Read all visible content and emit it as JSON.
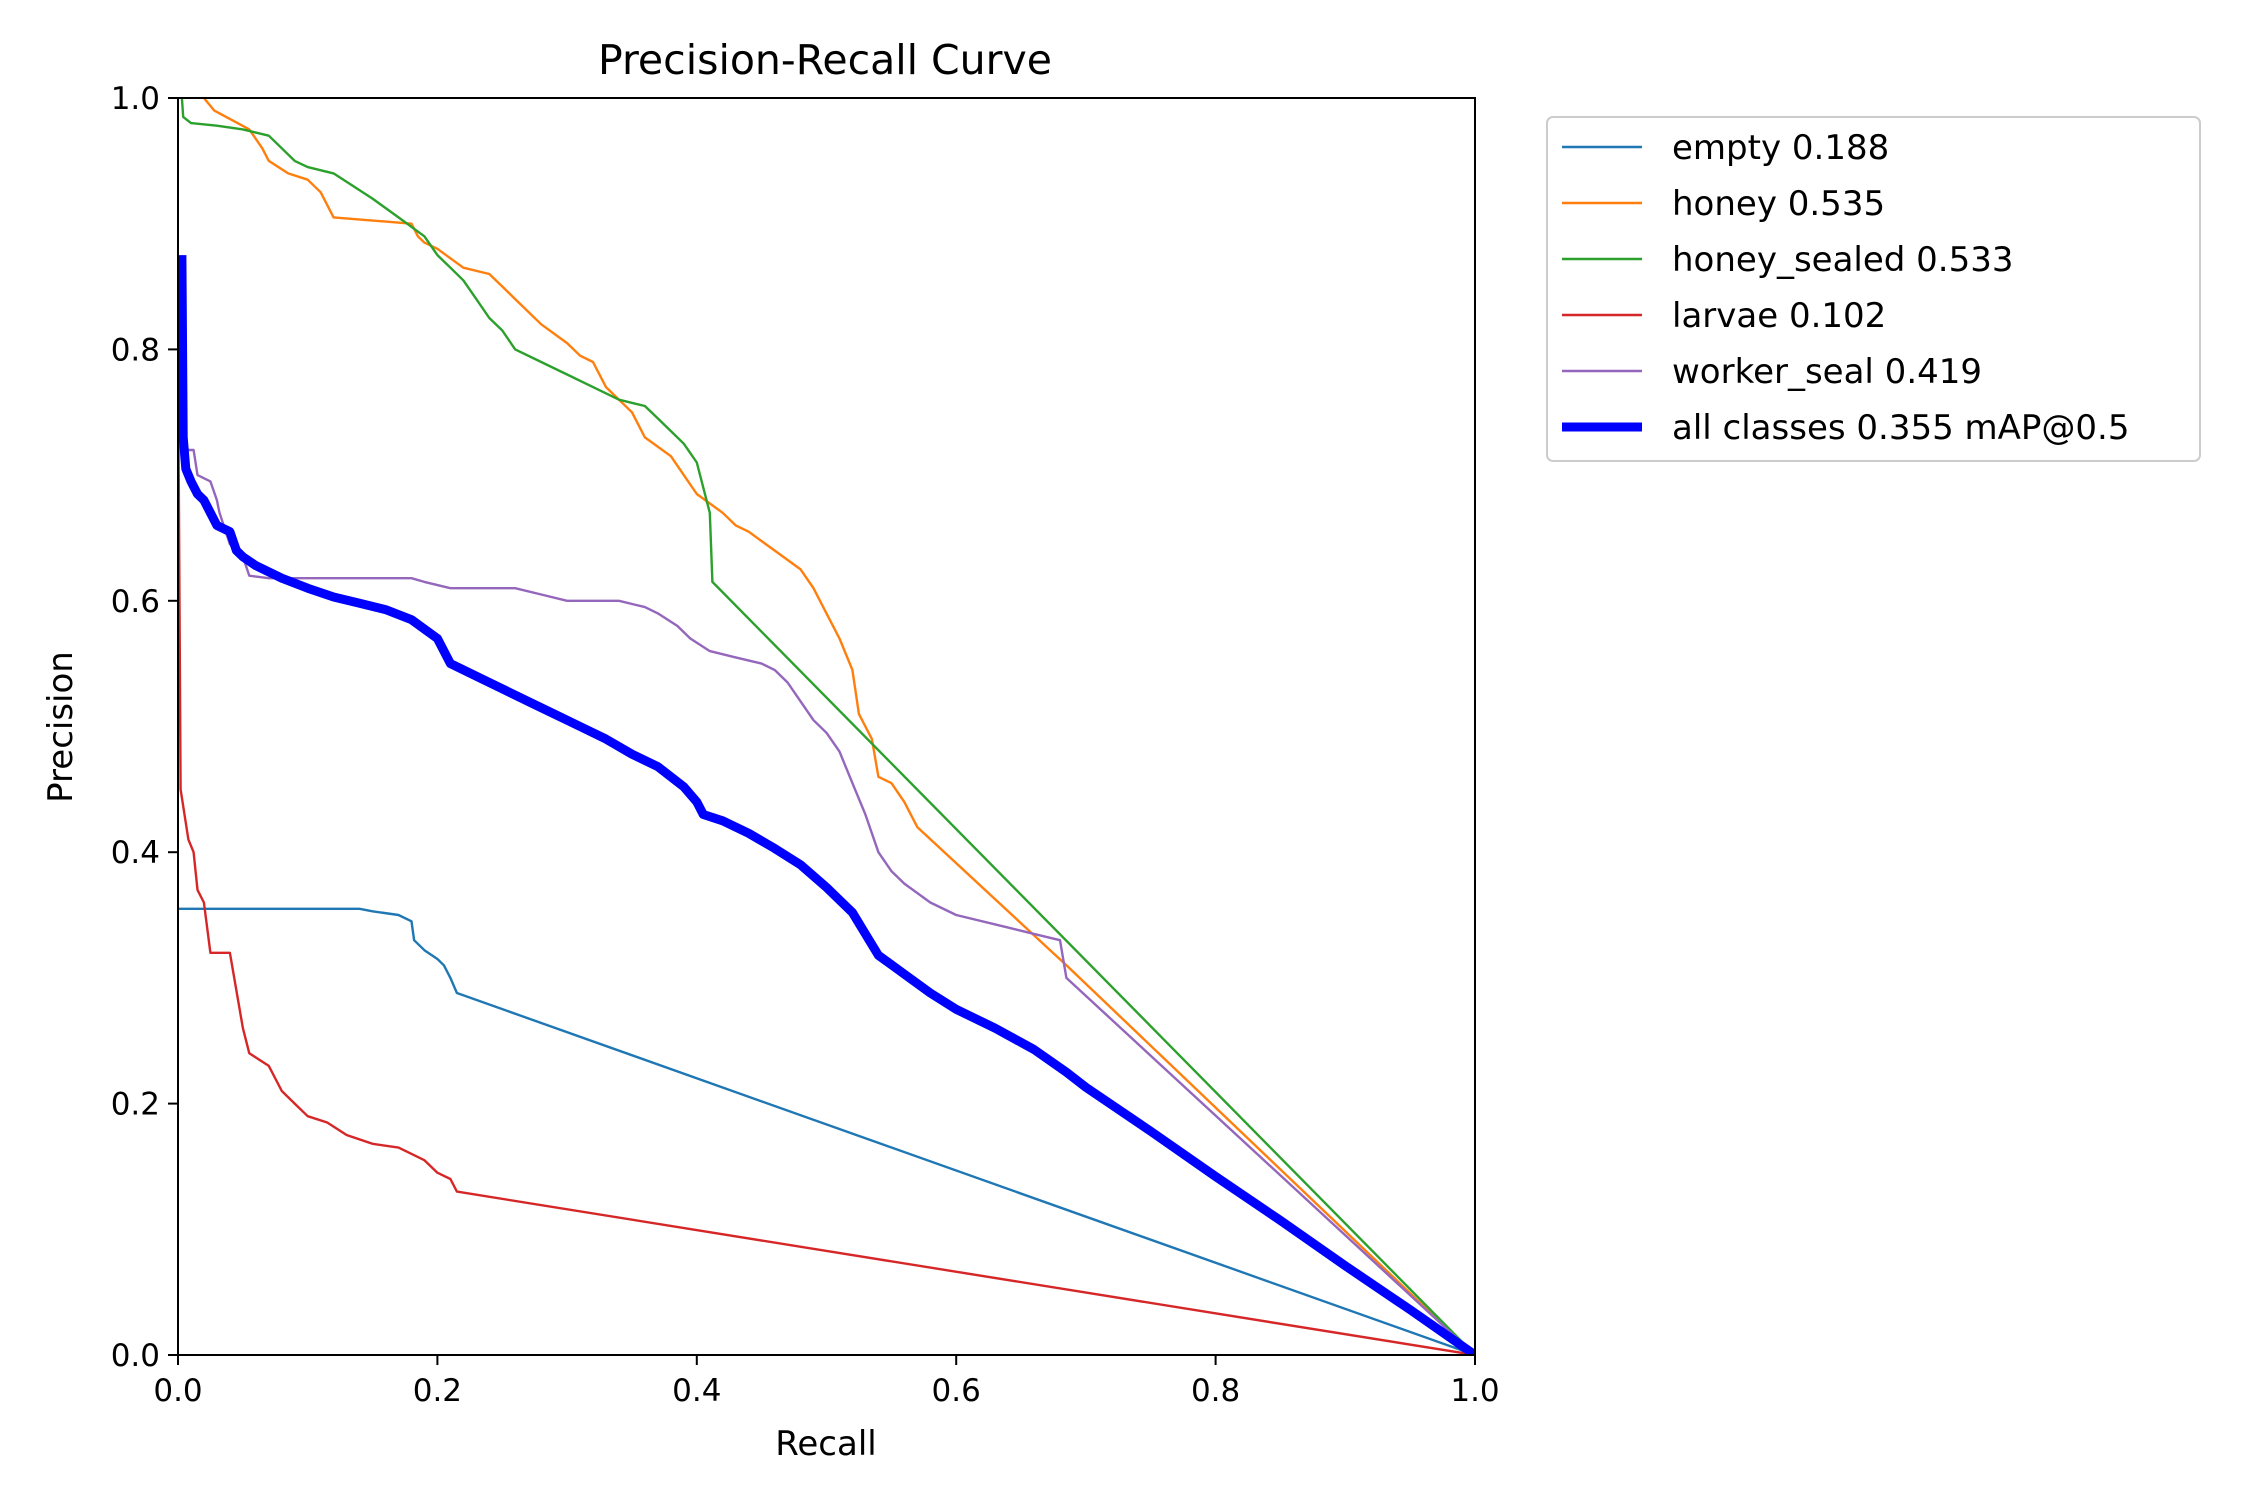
{
  "chart_data": {
    "type": "line",
    "title": "Precision-Recall Curve",
    "xlabel": "Recall",
    "ylabel": "Precision",
    "xlim": [
      0,
      1
    ],
    "ylim": [
      0,
      1
    ],
    "xticks": [
      "0.0",
      "0.2",
      "0.4",
      "0.6",
      "0.8",
      "1.0"
    ],
    "yticks": [
      "0.0",
      "0.2",
      "0.4",
      "0.6",
      "0.8",
      "1.0"
    ],
    "grid": false,
    "legend_position": "outside-right-top",
    "series": [
      {
        "name": "empty 0.188",
        "color": "#1f77b4",
        "points": [
          [
            0.0,
            0.355
          ],
          [
            0.14,
            0.355
          ],
          [
            0.15,
            0.353
          ],
          [
            0.17,
            0.35
          ],
          [
            0.18,
            0.345
          ],
          [
            0.182,
            0.33
          ],
          [
            0.19,
            0.322
          ],
          [
            0.2,
            0.315
          ],
          [
            0.205,
            0.31
          ],
          [
            0.21,
            0.3
          ],
          [
            0.215,
            0.288
          ],
          [
            1.0,
            0.0
          ]
        ]
      },
      {
        "name": "honey 0.535",
        "color": "#ff7f0e",
        "points": [
          [
            0.02,
            1.0
          ],
          [
            0.028,
            0.99
          ],
          [
            0.055,
            0.975
          ],
          [
            0.065,
            0.96
          ],
          [
            0.07,
            0.95
          ],
          [
            0.085,
            0.94
          ],
          [
            0.1,
            0.935
          ],
          [
            0.11,
            0.925
          ],
          [
            0.12,
            0.905
          ],
          [
            0.18,
            0.9
          ],
          [
            0.185,
            0.89
          ],
          [
            0.19,
            0.885
          ],
          [
            0.2,
            0.88
          ],
          [
            0.22,
            0.865
          ],
          [
            0.24,
            0.86
          ],
          [
            0.25,
            0.85
          ],
          [
            0.26,
            0.84
          ],
          [
            0.28,
            0.82
          ],
          [
            0.3,
            0.805
          ],
          [
            0.31,
            0.795
          ],
          [
            0.32,
            0.79
          ],
          [
            0.33,
            0.77
          ],
          [
            0.35,
            0.75
          ],
          [
            0.36,
            0.73
          ],
          [
            0.38,
            0.715
          ],
          [
            0.39,
            0.7
          ],
          [
            0.4,
            0.685
          ],
          [
            0.42,
            0.67
          ],
          [
            0.43,
            0.66
          ],
          [
            0.44,
            0.655
          ],
          [
            0.46,
            0.64
          ],
          [
            0.48,
            0.625
          ],
          [
            0.49,
            0.61
          ],
          [
            0.5,
            0.59
          ],
          [
            0.51,
            0.57
          ],
          [
            0.52,
            0.545
          ],
          [
            0.525,
            0.51
          ],
          [
            0.53,
            0.5
          ],
          [
            0.535,
            0.49
          ],
          [
            0.54,
            0.46
          ],
          [
            0.55,
            0.455
          ],
          [
            0.56,
            0.44
          ],
          [
            0.57,
            0.42
          ],
          [
            0.685,
            0.31
          ],
          [
            1.0,
            0.0
          ]
        ]
      },
      {
        "name": "honey_sealed 0.533",
        "color": "#2ca02c",
        "points": [
          [
            0.003,
            1.0
          ],
          [
            0.004,
            0.985
          ],
          [
            0.01,
            0.98
          ],
          [
            0.03,
            0.978
          ],
          [
            0.05,
            0.975
          ],
          [
            0.07,
            0.97
          ],
          [
            0.08,
            0.96
          ],
          [
            0.09,
            0.95
          ],
          [
            0.1,
            0.945
          ],
          [
            0.12,
            0.94
          ],
          [
            0.135,
            0.93
          ],
          [
            0.15,
            0.92
          ],
          [
            0.17,
            0.905
          ],
          [
            0.19,
            0.89
          ],
          [
            0.2,
            0.875
          ],
          [
            0.21,
            0.865
          ],
          [
            0.22,
            0.855
          ],
          [
            0.23,
            0.84
          ],
          [
            0.24,
            0.825
          ],
          [
            0.25,
            0.815
          ],
          [
            0.26,
            0.8
          ],
          [
            0.28,
            0.79
          ],
          [
            0.3,
            0.78
          ],
          [
            0.32,
            0.77
          ],
          [
            0.34,
            0.76
          ],
          [
            0.36,
            0.755
          ],
          [
            0.37,
            0.745
          ],
          [
            0.38,
            0.735
          ],
          [
            0.39,
            0.725
          ],
          [
            0.4,
            0.71
          ],
          [
            0.405,
            0.69
          ],
          [
            0.41,
            0.67
          ],
          [
            0.412,
            0.615
          ],
          [
            1.0,
            0.0
          ]
        ]
      },
      {
        "name": "larvae 0.102",
        "color": "#d62728",
        "points": [
          [
            0.0,
            0.8
          ],
          [
            0.002,
            0.45
          ],
          [
            0.005,
            0.43
          ],
          [
            0.008,
            0.41
          ],
          [
            0.012,
            0.4
          ],
          [
            0.015,
            0.37
          ],
          [
            0.02,
            0.36
          ],
          [
            0.025,
            0.32
          ],
          [
            0.04,
            0.32
          ],
          [
            0.045,
            0.29
          ],
          [
            0.05,
            0.26
          ],
          [
            0.055,
            0.24
          ],
          [
            0.07,
            0.23
          ],
          [
            0.08,
            0.21
          ],
          [
            0.09,
            0.2
          ],
          [
            0.1,
            0.19
          ],
          [
            0.115,
            0.185
          ],
          [
            0.13,
            0.175
          ],
          [
            0.15,
            0.168
          ],
          [
            0.17,
            0.165
          ],
          [
            0.19,
            0.155
          ],
          [
            0.2,
            0.145
          ],
          [
            0.21,
            0.14
          ],
          [
            0.215,
            0.13
          ],
          [
            1.0,
            0.0
          ]
        ]
      },
      {
        "name": "worker_seal 0.419",
        "color": "#9467bd",
        "points": [
          [
            0.003,
            0.72
          ],
          [
            0.012,
            0.72
          ],
          [
            0.015,
            0.7
          ],
          [
            0.025,
            0.695
          ],
          [
            0.03,
            0.68
          ],
          [
            0.032,
            0.67
          ],
          [
            0.04,
            0.645
          ],
          [
            0.05,
            0.635
          ],
          [
            0.055,
            0.62
          ],
          [
            0.07,
            0.618
          ],
          [
            0.18,
            0.618
          ],
          [
            0.19,
            0.615
          ],
          [
            0.21,
            0.61
          ],
          [
            0.26,
            0.61
          ],
          [
            0.28,
            0.605
          ],
          [
            0.3,
            0.6
          ],
          [
            0.34,
            0.6
          ],
          [
            0.36,
            0.595
          ],
          [
            0.37,
            0.59
          ],
          [
            0.385,
            0.58
          ],
          [
            0.395,
            0.57
          ],
          [
            0.41,
            0.56
          ],
          [
            0.43,
            0.555
          ],
          [
            0.45,
            0.55
          ],
          [
            0.46,
            0.545
          ],
          [
            0.47,
            0.535
          ],
          [
            0.48,
            0.52
          ],
          [
            0.49,
            0.505
          ],
          [
            0.5,
            0.495
          ],
          [
            0.51,
            0.48
          ],
          [
            0.52,
            0.455
          ],
          [
            0.53,
            0.43
          ],
          [
            0.54,
            0.4
          ],
          [
            0.55,
            0.385
          ],
          [
            0.56,
            0.375
          ],
          [
            0.58,
            0.36
          ],
          [
            0.6,
            0.35
          ],
          [
            0.64,
            0.34
          ],
          [
            0.66,
            0.335
          ],
          [
            0.68,
            0.33
          ],
          [
            0.685,
            0.3
          ],
          [
            1.0,
            0.0
          ]
        ]
      },
      {
        "name": "all classes 0.355 mAP@0.5",
        "color": "#0000ff",
        "points": [
          [
            0.003,
            0.875
          ],
          [
            0.004,
            0.73
          ],
          [
            0.006,
            0.705
          ],
          [
            0.01,
            0.695
          ],
          [
            0.015,
            0.685
          ],
          [
            0.02,
            0.68
          ],
          [
            0.025,
            0.67
          ],
          [
            0.03,
            0.66
          ],
          [
            0.04,
            0.655
          ],
          [
            0.045,
            0.64
          ],
          [
            0.05,
            0.635
          ],
          [
            0.06,
            0.628
          ],
          [
            0.08,
            0.618
          ],
          [
            0.1,
            0.61
          ],
          [
            0.12,
            0.603
          ],
          [
            0.14,
            0.598
          ],
          [
            0.16,
            0.593
          ],
          [
            0.18,
            0.585
          ],
          [
            0.2,
            0.57
          ],
          [
            0.21,
            0.55
          ],
          [
            0.23,
            0.54
          ],
          [
            0.25,
            0.53
          ],
          [
            0.27,
            0.52
          ],
          [
            0.29,
            0.51
          ],
          [
            0.31,
            0.5
          ],
          [
            0.33,
            0.49
          ],
          [
            0.35,
            0.478
          ],
          [
            0.37,
            0.468
          ],
          [
            0.39,
            0.452
          ],
          [
            0.4,
            0.44
          ],
          [
            0.405,
            0.43
          ],
          [
            0.42,
            0.425
          ],
          [
            0.44,
            0.415
          ],
          [
            0.46,
            0.403
          ],
          [
            0.48,
            0.39
          ],
          [
            0.5,
            0.372
          ],
          [
            0.52,
            0.352
          ],
          [
            0.53,
            0.335
          ],
          [
            0.54,
            0.318
          ],
          [
            0.56,
            0.303
          ],
          [
            0.58,
            0.288
          ],
          [
            0.6,
            0.275
          ],
          [
            0.63,
            0.26
          ],
          [
            0.66,
            0.243
          ],
          [
            0.685,
            0.225
          ],
          [
            0.7,
            0.213
          ],
          [
            0.75,
            0.178
          ],
          [
            0.8,
            0.142
          ],
          [
            0.85,
            0.107
          ],
          [
            0.9,
            0.071
          ],
          [
            0.95,
            0.036
          ],
          [
            1.0,
            0.0
          ]
        ]
      }
    ]
  }
}
